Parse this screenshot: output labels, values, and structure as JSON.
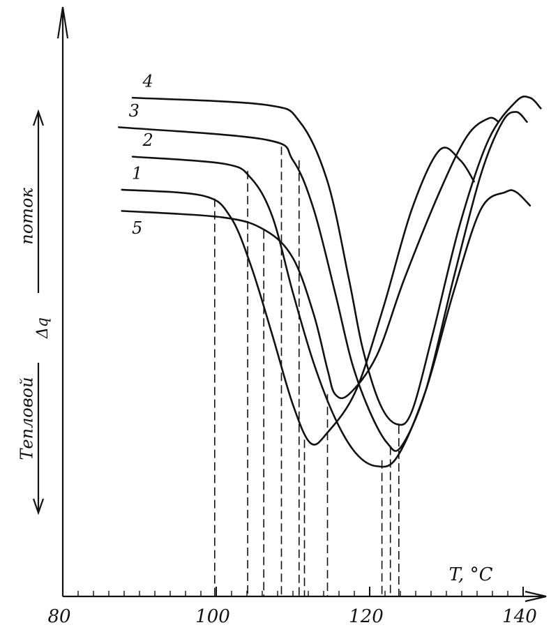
{
  "chart_data": {
    "type": "line",
    "xlabel": "T, °C",
    "ylabel": [
      "Тепловой",
      "поток"
    ],
    "ylabel_symbol": "Δq",
    "xlim": [
      80,
      143
    ],
    "ylim": [
      0,
      100
    ],
    "xticks": [
      80,
      100,
      120,
      140
    ],
    "series": [
      {
        "name": "1",
        "color": "#111111",
        "x": [
          87.7,
          98.2,
          101.8,
          104.5,
          107.3,
          110,
          112.3,
          114.5,
          118.2,
          121.8,
          125.5,
          129.1,
          131.8,
          133.6
        ],
        "values": [
          69,
          68,
          64.5,
          56.2,
          44.4,
          32.5,
          26,
          27.8,
          34.9,
          49.1,
          65.7,
          75.7,
          74,
          70.4
        ]
      },
      {
        "name": "2",
        "color": "#111111",
        "x": [
          89.1,
          101.0,
          104.5,
          107.3,
          110,
          112.7,
          115.5,
          118.2,
          120.9,
          123.6,
          127.3,
          130.9,
          134.5,
          137.7,
          139.1,
          140.9
        ],
        "values": [
          74.6,
          73.4,
          71,
          64.5,
          51.5,
          39.6,
          30.2,
          24.3,
          22.1,
          23.7,
          34.9,
          51.5,
          65.7,
          68.6,
          68.6,
          66.3
        ]
      },
      {
        "name": "3",
        "color": "#111111",
        "x": [
          87.3,
          106.4,
          110,
          112.7,
          115.5,
          117.7,
          120,
          122.3,
          124.1,
          127.3,
          130.9,
          134.5,
          137.3,
          139.1,
          140.5
        ],
        "values": [
          79.6,
          77.5,
          74,
          65.7,
          51.5,
          39.6,
          31.4,
          26,
          25.4,
          34.9,
          53.8,
          71.6,
          80.5,
          82.2,
          80.5
        ]
      },
      {
        "name": "4",
        "color": "#111111",
        "x": [
          89.1,
          106.4,
          110.9,
          114.5,
          117.3,
          119.1,
          121.4,
          123.6,
          125.5,
          128.2,
          131.8,
          135.5,
          139.1,
          140.9,
          142.3
        ],
        "values": [
          84.6,
          83.4,
          80.5,
          70.4,
          53.8,
          42,
          32.5,
          29.2,
          31.4,
          44.4,
          63.3,
          77.5,
          84,
          84.6,
          82.8
        ]
      },
      {
        "name": "5",
        "color": "#111111",
        "x": [
          87.7,
          100.9,
          106.4,
          110,
          112.7,
          114.5,
          115.5,
          117.3,
          120.9,
          124.5,
          129.1,
          132.7,
          135.5,
          136.8
        ],
        "values": [
          65.4,
          64.3,
          62.1,
          57.4,
          47.9,
          38.5,
          34.3,
          34.3,
          40.8,
          53.8,
          68.6,
          78.1,
          81.1,
          80.5
        ]
      }
    ],
    "dashed_lines": {
      "x": [
        99.8,
        104.1,
        106.2,
        108.5,
        110.8,
        111.5,
        114.5,
        121.6,
        122.7,
        123.8
      ],
      "y": [
        67.5,
        72.2,
        62.1,
        76.3,
        74,
        26.6,
        34.3,
        23.1,
        25.4,
        29
      ]
    }
  }
}
